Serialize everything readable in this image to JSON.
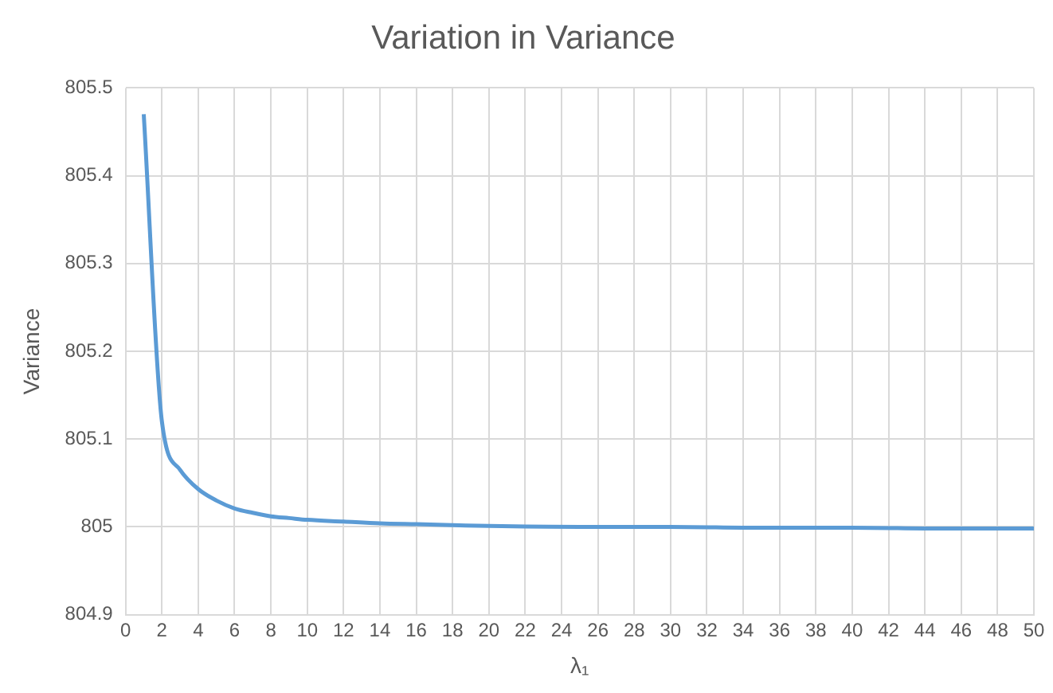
{
  "chart_data": {
    "type": "line",
    "title": "Variation in Variance",
    "xlabel": "λ₁",
    "ylabel": "Variance",
    "xlim": [
      0,
      50
    ],
    "xticks": [
      0,
      2,
      4,
      6,
      8,
      10,
      12,
      14,
      16,
      18,
      20,
      22,
      24,
      26,
      28,
      30,
      32,
      34,
      36,
      38,
      40,
      42,
      44,
      46,
      48,
      50
    ],
    "ylim": [
      804.9,
      805.5
    ],
    "yticks": [
      804.9,
      805,
      805.1,
      805.2,
      805.3,
      805.4,
      805.5
    ],
    "x": [
      1,
      2,
      3,
      4,
      5,
      6,
      7,
      8,
      9,
      10,
      12,
      14,
      16,
      18,
      20,
      25,
      30,
      35,
      40,
      45,
      50
    ],
    "series": [
      {
        "color": "#5b9bd5",
        "values": [
          805.47,
          805.12,
          805.065,
          805.043,
          805.03,
          805.021,
          805.016,
          805.012,
          805.01,
          805.008,
          805.006,
          805.004,
          805.003,
          805.002,
          805.001,
          805.0,
          805.0,
          804.999,
          804.999,
          804.998,
          804.998
        ]
      }
    ],
    "grid": true,
    "legend": false,
    "marker": "none",
    "line_style": "solid"
  }
}
